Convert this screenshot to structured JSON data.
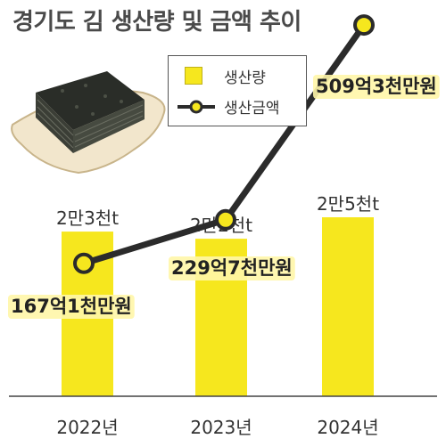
{
  "title": "경기도 김 생산량 및 금액 추이",
  "legend": {
    "bar_label": "생산량",
    "line_label": "생산금액"
  },
  "colors": {
    "bar": "#f6e71e",
    "line": "#2b2b2b",
    "marker_fill": "#f6e71e",
    "title": "#4a4a4a"
  },
  "illustration": "seaweed-sheets-on-tray",
  "chart_data": {
    "type": "bar",
    "categories": [
      "2022년",
      "2023년",
      "2024년"
    ],
    "series": [
      {
        "name": "생산량",
        "type": "bar",
        "values": [
          23000,
          22000,
          25000
        ],
        "unit": "t",
        "labels": [
          "2만3천t",
          "2만2천t",
          "2만5천t"
        ]
      },
      {
        "name": "생산금액",
        "type": "line",
        "values": [
          167.1,
          229.7,
          509.3
        ],
        "unit": "억원",
        "labels": [
          "167억1천만원",
          "229억7천만원",
          "509억3천만원"
        ]
      }
    ],
    "legend_position": "top-center",
    "grid": false
  }
}
